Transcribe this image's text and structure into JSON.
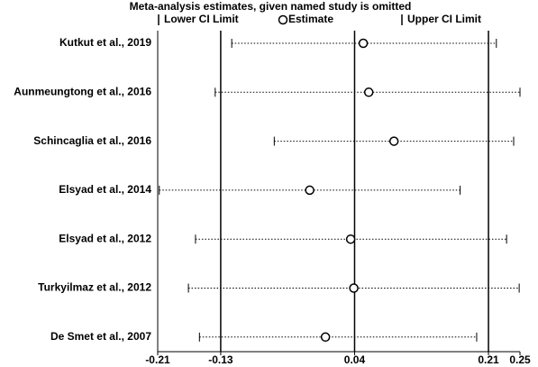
{
  "chart_data": {
    "type": "forest",
    "title": "Meta-analysis estimates, given named study is omitted",
    "categories": [
      "Kutkut et al., 2019",
      "Aunmeungtong et al., 2016",
      "Schincaglia et al., 2016",
      "Elsyad et al., 2014",
      "Elsyad et al., 2012",
      "Turkyilmaz et al., 2012",
      "De Smet et al., 2007"
    ],
    "series": [
      {
        "name": "Lower CI Limit",
        "color": "#000000",
        "values": [
          -0.116,
          -0.137,
          -0.062,
          -0.208,
          -0.162,
          -0.171,
          -0.157
        ]
      },
      {
        "name": "Estimate",
        "color": "#000000",
        "values": [
          0.051,
          0.058,
          0.09,
          -0.017,
          0.035,
          0.039,
          0.003
        ]
      },
      {
        "name": "Upper CI Limit",
        "color": "#000000",
        "values": [
          0.22,
          0.25,
          0.242,
          0.174,
          0.233,
          0.249,
          0.195
        ]
      }
    ],
    "xlim": [
      -0.21,
      0.25
    ],
    "xticks": [
      -0.21,
      -0.13,
      0.04,
      0.21,
      0.25
    ],
    "reference_lines": [
      -0.13,
      0.04,
      0.21
    ]
  }
}
